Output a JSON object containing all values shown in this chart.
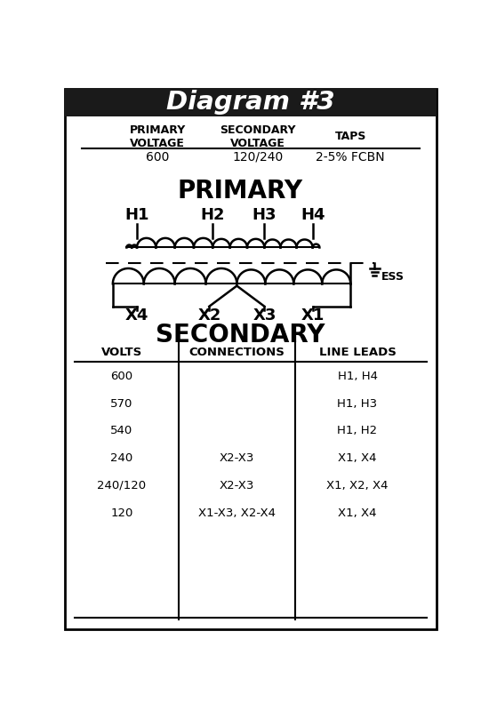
{
  "title": "Diagram #3",
  "title_bg": "#1a1a1a",
  "title_color": "#ffffff",
  "border_color": "#000000",
  "bg_color": "#ffffff",
  "top_table": {
    "headers": [
      "PRIMARY\nVOLTAGE",
      "SECONDARY\nVOLTAGE",
      "TAPS"
    ],
    "values": [
      "600",
      "120/240",
      "2-5% FCBN"
    ]
  },
  "primary_label": "PRIMARY",
  "secondary_label": "SECONDARY",
  "h_labels": [
    "H1",
    "H2",
    "H3",
    "H4"
  ],
  "x_labels": [
    "X4",
    "X2",
    "X3",
    "X1"
  ],
  "bottom_table": {
    "headers": [
      "VOLTS",
      "CONNECTIONS",
      "LINE LEADS"
    ],
    "rows": [
      [
        "600",
        "",
        "H1, H4"
      ],
      [
        "570",
        "",
        "H1, H3"
      ],
      [
        "540",
        "",
        "H1, H2"
      ],
      [
        "240",
        "X2-X3",
        "X1, X4"
      ],
      [
        "240/120",
        "X2-X3",
        "X1, X2, X4"
      ],
      [
        "120",
        "X1-X3, X2-X4",
        "X1, X4"
      ]
    ]
  }
}
